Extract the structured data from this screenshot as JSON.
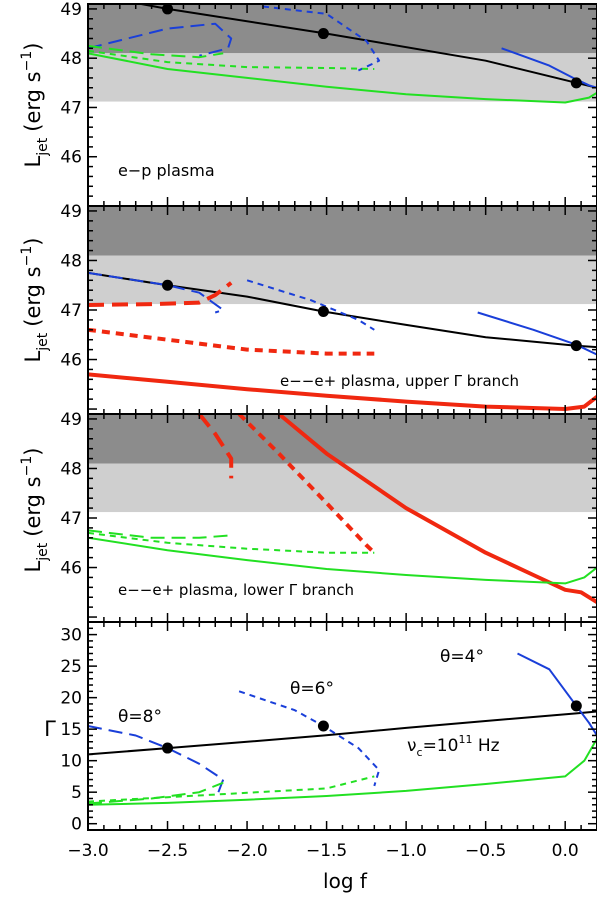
{
  "colors": {
    "band_dark": "#8c8c8c",
    "band_light": "#cfcfcf",
    "blue": "#1a3fd9",
    "green": "#22e022",
    "red": "#f02810",
    "black": "#000000"
  },
  "chart_data": [
    {
      "type": "line",
      "panel": "top",
      "ylabel_main": "L",
      "ylabel_sub": "jet",
      "ylabel_units": "(erg s",
      "ylabel_exp": "−1",
      "ylabel_close": ")",
      "annotation": "e−p plasma",
      "xlim": [
        -3.0,
        0.2
      ],
      "ylim": [
        45.0,
        49.1
      ],
      "yticks": [
        "46",
        "47",
        "48",
        "49"
      ],
      "bands": [
        {
          "y0": 48.1,
          "y1": 49.1,
          "shade": "dark"
        },
        {
          "y0": 47.12,
          "y1": 48.1,
          "shade": "light"
        }
      ],
      "series": [
        {
          "color": "black",
          "style": "solid",
          "points": [
            [
              -3.0,
              49.3
            ],
            [
              -2.5,
              49.0
            ],
            [
              -1.5,
              48.5
            ],
            [
              -0.5,
              47.95
            ],
            [
              0.07,
              47.5
            ],
            [
              0.2,
              47.4
            ]
          ]
        },
        {
          "color": "blue",
          "style": "longdash",
          "points": [
            [
              -3.0,
              48.2
            ],
            [
              -2.5,
              48.6
            ],
            [
              -2.2,
              48.7
            ],
            [
              -2.1,
              48.4
            ],
            [
              -2.12,
              48.2
            ],
            [
              -2.3,
              48.05
            ]
          ]
        },
        {
          "color": "blue",
          "style": "shortdash",
          "points": [
            [
              -1.9,
              49.05
            ],
            [
              -1.5,
              48.9
            ],
            [
              -1.25,
              48.35
            ],
            [
              -1.17,
              47.95
            ],
            [
              -1.3,
              47.75
            ]
          ]
        },
        {
          "color": "blue",
          "style": "solid",
          "points": [
            [
              -0.4,
              48.2
            ],
            [
              -0.1,
              47.85
            ],
            [
              0.05,
              47.6
            ],
            [
              0.15,
              47.45
            ],
            [
              0.2,
              47.4
            ]
          ]
        },
        {
          "color": "green",
          "style": "longdash",
          "points": [
            [
              -3.0,
              48.25
            ],
            [
              -2.6,
              48.08
            ],
            [
              -2.3,
              48.02
            ],
            [
              -2.15,
              48.1
            ]
          ]
        },
        {
          "color": "green",
          "style": "shortdash",
          "points": [
            [
              -3.0,
              48.15
            ],
            [
              -2.5,
              47.92
            ],
            [
              -2.0,
              47.82
            ],
            [
              -1.5,
              47.8
            ],
            [
              -1.2,
              47.78
            ]
          ]
        },
        {
          "color": "green",
          "style": "solid",
          "points": [
            [
              -3.0,
              48.1
            ],
            [
              -2.5,
              47.78
            ],
            [
              -2.0,
              47.6
            ],
            [
              -1.5,
              47.42
            ],
            [
              -1.0,
              47.27
            ],
            [
              -0.5,
              47.17
            ],
            [
              0.0,
              47.1
            ],
            [
              0.15,
              47.2
            ],
            [
              0.2,
              47.3
            ]
          ]
        }
      ],
      "markers": [
        [
          -2.5,
          49.0
        ],
        [
          -1.52,
          48.5
        ],
        [
          0.07,
          47.5
        ]
      ]
    },
    {
      "type": "line",
      "panel": "upper-middle",
      "ylabel_main": "L",
      "ylabel_sub": "jet",
      "ylabel_units": "(erg s",
      "ylabel_exp": "−1",
      "ylabel_close": ")",
      "annotation": "e−−e+ plasma, upper Γ branch",
      "xlim": [
        -3.0,
        0.2
      ],
      "ylim": [
        44.9,
        49.1
      ],
      "yticks": [
        "46",
        "47",
        "48",
        "49"
      ],
      "bands": [
        {
          "y0": 48.1,
          "y1": 49.1,
          "shade": "dark"
        },
        {
          "y0": 47.12,
          "y1": 48.1,
          "shade": "light"
        }
      ],
      "series": [
        {
          "color": "black",
          "style": "solid",
          "points": [
            [
              -3.0,
              47.75
            ],
            [
              -2.5,
              47.5
            ],
            [
              -2.0,
              47.27
            ],
            [
              -1.52,
              46.97
            ],
            [
              -1.0,
              46.7
            ],
            [
              -0.5,
              46.45
            ],
            [
              0.07,
              46.28
            ],
            [
              0.2,
              46.25
            ]
          ]
        },
        {
          "color": "blue",
          "style": "longdash",
          "points": [
            [
              -3.0,
              47.75
            ],
            [
              -2.5,
              47.5
            ],
            [
              -2.3,
              47.35
            ],
            [
              -2.15,
              47.0
            ],
            [
              -2.2,
              46.95
            ]
          ]
        },
        {
          "color": "blue",
          "style": "shortdash",
          "points": [
            [
              -2.0,
              47.6
            ],
            [
              -1.6,
              47.2
            ],
            [
              -1.3,
              46.8
            ],
            [
              -1.2,
              46.6
            ]
          ]
        },
        {
          "color": "blue",
          "style": "solid",
          "points": [
            [
              -0.55,
              46.95
            ],
            [
              -0.2,
              46.6
            ],
            [
              0.07,
              46.3
            ],
            [
              0.2,
              46.1
            ]
          ]
        },
        {
          "color": "red",
          "style": "longdash-thick",
          "points": [
            [
              -3.0,
              47.1
            ],
            [
              -2.6,
              47.12
            ],
            [
              -2.3,
              47.15
            ],
            [
              -2.2,
              47.3
            ],
            [
              -2.1,
              47.55
            ]
          ]
        },
        {
          "color": "red",
          "style": "shortdash-thick",
          "points": [
            [
              -3.0,
              46.6
            ],
            [
              -2.5,
              46.4
            ],
            [
              -2.0,
              46.2
            ],
            [
              -1.5,
              46.12
            ],
            [
              -1.2,
              46.12
            ]
          ]
        },
        {
          "color": "red",
          "style": "solid-thick",
          "points": [
            [
              -3.0,
              45.7
            ],
            [
              -2.5,
              45.55
            ],
            [
              -2.0,
              45.4
            ],
            [
              -1.5,
              45.27
            ],
            [
              -1.0,
              45.15
            ],
            [
              -0.5,
              45.05
            ],
            [
              0.0,
              45.0
            ],
            [
              0.12,
              45.05
            ],
            [
              0.2,
              45.25
            ]
          ]
        }
      ],
      "markers": [
        [
          -2.5,
          47.5
        ],
        [
          -1.52,
          46.97
        ],
        [
          0.07,
          46.28
        ]
      ]
    },
    {
      "type": "line",
      "panel": "lower-middle",
      "ylabel_main": "L",
      "ylabel_sub": "jet",
      "ylabel_units": "(erg s",
      "ylabel_exp": "−1",
      "ylabel_close": ")",
      "annotation": "e−−e+ plasma, lower Γ branch",
      "xlim": [
        -3.0,
        0.2
      ],
      "ylim": [
        44.9,
        49.1
      ],
      "yticks": [
        "46",
        "47",
        "48",
        "49"
      ],
      "bands": [
        {
          "y0": 48.1,
          "y1": 49.1,
          "shade": "dark"
        },
        {
          "y0": 47.12,
          "y1": 48.1,
          "shade": "light"
        }
      ],
      "series": [
        {
          "color": "red",
          "style": "longdash-thick",
          "points": [
            [
              -2.3,
              49.1
            ],
            [
              -2.2,
              48.7
            ],
            [
              -2.1,
              48.2
            ],
            [
              -2.1,
              47.8
            ]
          ]
        },
        {
          "color": "red",
          "style": "shortdash-thick",
          "points": [
            [
              -2.05,
              49.1
            ],
            [
              -1.8,
              48.3
            ],
            [
              -1.5,
              47.3
            ],
            [
              -1.25,
              46.45
            ],
            [
              -1.2,
              46.3
            ]
          ]
        },
        {
          "color": "red",
          "style": "solid-thick",
          "points": [
            [
              -1.8,
              49.1
            ],
            [
              -1.5,
              48.3
            ],
            [
              -1.0,
              47.2
            ],
            [
              -0.5,
              46.3
            ],
            [
              -0.2,
              45.85
            ],
            [
              0.0,
              45.55
            ],
            [
              0.1,
              45.5
            ],
            [
              0.2,
              45.3
            ]
          ]
        },
        {
          "color": "green",
          "style": "longdash",
          "points": [
            [
              -3.0,
              46.75
            ],
            [
              -2.6,
              46.6
            ],
            [
              -2.3,
              46.6
            ],
            [
              -2.1,
              46.65
            ]
          ]
        },
        {
          "color": "green",
          "style": "shortdash",
          "points": [
            [
              -3.0,
              46.7
            ],
            [
              -2.5,
              46.5
            ],
            [
              -2.0,
              46.38
            ],
            [
              -1.5,
              46.3
            ],
            [
              -1.2,
              46.3
            ]
          ]
        },
        {
          "color": "green",
          "style": "solid",
          "points": [
            [
              -3.0,
              46.6
            ],
            [
              -2.5,
              46.35
            ],
            [
              -2.0,
              46.15
            ],
            [
              -1.5,
              45.97
            ],
            [
              -1.0,
              45.85
            ],
            [
              -0.5,
              45.75
            ],
            [
              0.0,
              45.68
            ],
            [
              0.12,
              45.8
            ],
            [
              0.2,
              46.0
            ]
          ]
        }
      ],
      "markers": []
    },
    {
      "type": "line",
      "panel": "bottom",
      "ylabel": "Γ",
      "xlabel": "log f",
      "xlim": [
        -3.0,
        0.2
      ],
      "ylim": [
        -1,
        32
      ],
      "xticks": [
        "−3.0",
        "−2.5",
        "−2.0",
        "−1.5",
        "−1.0",
        "−0.5",
        "0.0"
      ],
      "yticks": [
        "0",
        "5",
        "10",
        "15",
        "20",
        "25",
        "30"
      ],
      "labels": {
        "theta8": "θ=8°",
        "theta6": "θ=6°",
        "theta4": "θ=4°",
        "nu_main": "ν",
        "nu_sub": "c",
        "nu_eq": "=10",
        "nu_exp": "11",
        "nu_unit": " Hz"
      },
      "series": [
        {
          "color": "black",
          "style": "solid",
          "points": [
            [
              -3.0,
              11.0
            ],
            [
              -2.5,
              12.0
            ],
            [
              -2.0,
              13.0
            ],
            [
              -1.52,
              14.0
            ],
            [
              -1.0,
              15.2
            ],
            [
              -0.5,
              16.3
            ],
            [
              0.07,
              17.5
            ],
            [
              0.2,
              17.8
            ]
          ]
        },
        {
          "color": "blue",
          "style": "longdash",
          "points": [
            [
              -3.0,
              15.5
            ],
            [
              -2.7,
              14.0
            ],
            [
              -2.5,
              12.0
            ],
            [
              -2.3,
              9.5
            ],
            [
              -2.15,
              7.0
            ],
            [
              -2.18,
              5.0
            ]
          ]
        },
        {
          "color": "blue",
          "style": "shortdash",
          "points": [
            [
              -2.05,
              21.0
            ],
            [
              -1.7,
              18.0
            ],
            [
              -1.52,
              15.5
            ],
            [
              -1.3,
              12.0
            ],
            [
              -1.17,
              8.5
            ],
            [
              -1.2,
              6.0
            ]
          ]
        },
        {
          "color": "blue",
          "style": "solid",
          "points": [
            [
              -0.3,
              27.0
            ],
            [
              -0.1,
              24.5
            ],
            [
              0.07,
              18.7
            ],
            [
              0.15,
              16.0
            ],
            [
              0.2,
              14.0
            ]
          ]
        },
        {
          "color": "green",
          "style": "longdash",
          "points": [
            [
              -3.0,
              3.2
            ],
            [
              -2.6,
              4.0
            ],
            [
              -2.3,
              5.0
            ],
            [
              -2.15,
              6.5
            ]
          ]
        },
        {
          "color": "green",
          "style": "shortdash",
          "points": [
            [
              -3.0,
              3.5
            ],
            [
              -2.5,
              4.2
            ],
            [
              -2.0,
              4.9
            ],
            [
              -1.5,
              5.6
            ],
            [
              -1.2,
              7.5
            ]
          ]
        },
        {
          "color": "green",
          "style": "solid",
          "points": [
            [
              -3.0,
              3.0
            ],
            [
              -2.5,
              3.3
            ],
            [
              -2.0,
              3.8
            ],
            [
              -1.5,
              4.4
            ],
            [
              -1.0,
              5.2
            ],
            [
              -0.5,
              6.3
            ],
            [
              0.0,
              7.5
            ],
            [
              0.12,
              10.0
            ],
            [
              0.2,
              13.5
            ]
          ]
        }
      ],
      "markers": [
        [
          -2.5,
          12.0
        ],
        [
          -1.52,
          15.5
        ],
        [
          0.07,
          18.7
        ]
      ]
    }
  ]
}
